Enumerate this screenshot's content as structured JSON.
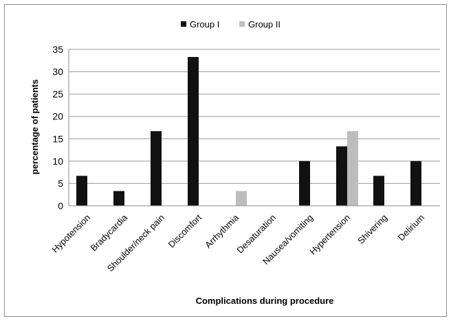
{
  "chart_data": {
    "type": "bar",
    "title": "",
    "xlabel": "Complications during procedure",
    "ylabel": "percentage of patients",
    "categories": [
      "Hypotension",
      "Bradycardia",
      "Shoulder/neck pain",
      "Discomfort",
      "Arrhythmia",
      "Desaturation",
      "Nausea/vomiting",
      "Hypertension",
      "Shivering",
      "Delirium"
    ],
    "series": [
      {
        "name": "Group I",
        "color": "#111111",
        "values": [
          6.7,
          3.3,
          16.7,
          33.3,
          0,
          0,
          10,
          13.3,
          6.7,
          10
        ]
      },
      {
        "name": "Group II",
        "color": "#bdbdbd",
        "values": [
          0,
          0,
          0,
          0,
          3.3,
          0,
          0,
          16.7,
          0,
          0
        ]
      }
    ],
    "yticks": [
      0,
      5,
      10,
      15,
      20,
      25,
      30,
      35
    ],
    "ylim": [
      0,
      35
    ],
    "grid": true,
    "legend_position": "top"
  }
}
